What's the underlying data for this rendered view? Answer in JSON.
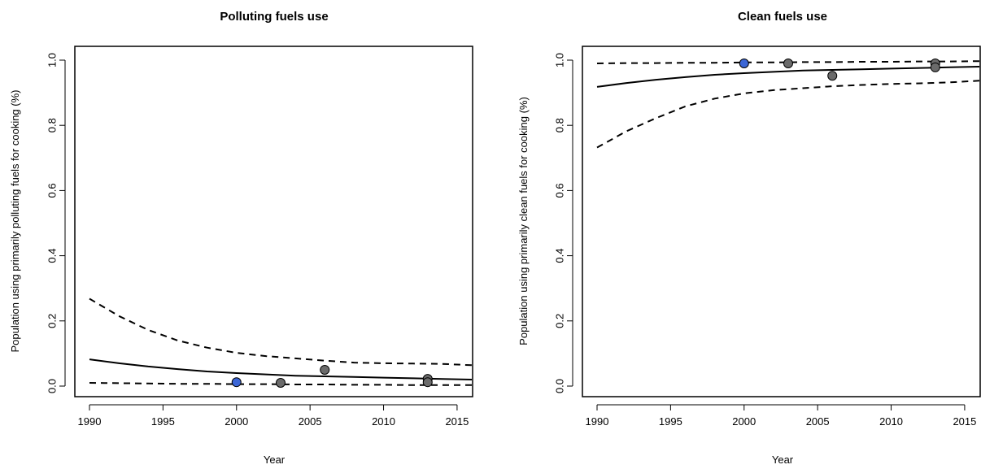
{
  "colors": {
    "line": "#000000",
    "point_fill": "#6b6b6b",
    "point_highlight": "#3b66d6",
    "point_stroke": "#000000",
    "background": "#ffffff"
  },
  "chart_data": [
    {
      "type": "line",
      "title": "Polluting fuels use",
      "xlabel": "Year",
      "ylabel": "Population using primarily polluting fuels for cooking (%)",
      "xlim": [
        1990,
        2016
      ],
      "ylim": [
        0,
        1
      ],
      "xticks": [
        1990,
        1995,
        2000,
        2005,
        2010,
        2015
      ],
      "yticks": [
        0.0,
        0.2,
        0.4,
        0.6,
        0.8,
        1.0
      ],
      "ytick_labels": [
        "0.0",
        "0.2",
        "0.4",
        "0.6",
        "0.8",
        "1.0"
      ],
      "grid": false,
      "x": [
        1990,
        1992,
        1994,
        1996,
        1998,
        2000,
        2002,
        2004,
        2006,
        2008,
        2010,
        2012,
        2014,
        2016
      ],
      "series": [
        {
          "role": "estimate",
          "style": "solid",
          "values": [
            0.082,
            0.07,
            0.06,
            0.052,
            0.045,
            0.04,
            0.036,
            0.032,
            0.03,
            0.028,
            0.026,
            0.024,
            0.022,
            0.02
          ]
        },
        {
          "role": "upper-bound",
          "style": "dashed",
          "values": [
            0.268,
            0.215,
            0.172,
            0.14,
            0.118,
            0.102,
            0.092,
            0.085,
            0.078,
            0.072,
            0.07,
            0.069,
            0.068,
            0.064
          ]
        },
        {
          "role": "lower-bound",
          "style": "dashed",
          "values": [
            0.01,
            0.009,
            0.008,
            0.007,
            0.007,
            0.006,
            0.006,
            0.005,
            0.005,
            0.004,
            0.004,
            0.003,
            0.003,
            0.003
          ]
        }
      ],
      "points": [
        {
          "x": 2000,
          "y": 0.012,
          "highlight": true
        },
        {
          "x": 2003,
          "y": 0.01,
          "highlight": false
        },
        {
          "x": 2006,
          "y": 0.05,
          "highlight": false
        },
        {
          "x": 2013,
          "y": 0.022,
          "highlight": false
        },
        {
          "x": 2013,
          "y": 0.012,
          "highlight": false
        }
      ]
    },
    {
      "type": "line",
      "title": "Clean fuels use",
      "xlabel": "Year",
      "ylabel": "Population using primarily clean fuels for cooking (%)",
      "xlim": [
        1990,
        2016
      ],
      "ylim": [
        0,
        1
      ],
      "xticks": [
        1990,
        1995,
        2000,
        2005,
        2010,
        2015
      ],
      "yticks": [
        0.0,
        0.2,
        0.4,
        0.6,
        0.8,
        1.0
      ],
      "ytick_labels": [
        "0.0",
        "0.2",
        "0.4",
        "0.6",
        "0.8",
        "1.0"
      ],
      "grid": false,
      "x": [
        1990,
        1992,
        1994,
        1996,
        1998,
        2000,
        2002,
        2004,
        2006,
        2008,
        2010,
        2012,
        2014,
        2016
      ],
      "series": [
        {
          "role": "estimate",
          "style": "solid",
          "values": [
            0.918,
            0.93,
            0.94,
            0.948,
            0.955,
            0.96,
            0.964,
            0.968,
            0.97,
            0.972,
            0.974,
            0.976,
            0.978,
            0.98
          ]
        },
        {
          "role": "upper-bound",
          "style": "dashed",
          "values": [
            0.99,
            0.991,
            0.991,
            0.992,
            0.992,
            0.993,
            0.993,
            0.994,
            0.994,
            0.995,
            0.995,
            0.996,
            0.996,
            0.997
          ]
        },
        {
          "role": "lower-bound",
          "style": "dashed",
          "values": [
            0.732,
            0.782,
            0.822,
            0.858,
            0.882,
            0.898,
            0.908,
            0.914,
            0.92,
            0.924,
            0.927,
            0.929,
            0.932,
            0.937
          ]
        }
      ],
      "points": [
        {
          "x": 2000,
          "y": 0.99,
          "highlight": true
        },
        {
          "x": 2003,
          "y": 0.99,
          "highlight": false
        },
        {
          "x": 2006,
          "y": 0.952,
          "highlight": false
        },
        {
          "x": 2013,
          "y": 0.99,
          "highlight": false
        },
        {
          "x": 2013,
          "y": 0.978,
          "highlight": false
        }
      ]
    }
  ]
}
